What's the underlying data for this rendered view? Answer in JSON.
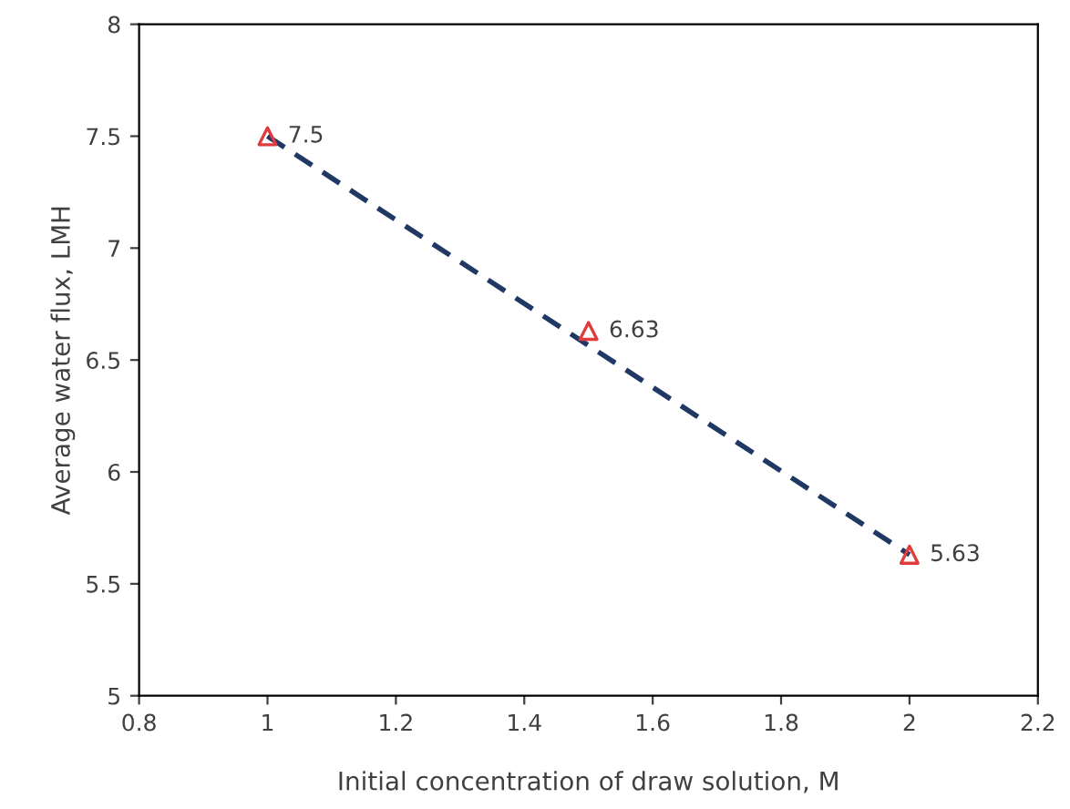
{
  "chart_data": {
    "type": "scatter",
    "xlabel": "Initial concentration of draw solution, M",
    "ylabel": "Average water flux, LMH",
    "xlim": [
      0.8,
      2.2
    ],
    "xticks": [
      0.8,
      1,
      1.2,
      1.4,
      1.6,
      1.8,
      2,
      2.2
    ],
    "ylim": [
      5,
      8
    ],
    "yticks": [
      5,
      5.5,
      6,
      6.5,
      7,
      7.5,
      8
    ],
    "grid": false,
    "legend": false,
    "series": [
      {
        "type": "line",
        "color": "#1f3864",
        "x": [
          1,
          2
        ],
        "values": [
          7.5,
          5.63
        ],
        "line_style": "dashed",
        "marker": "none"
      },
      {
        "color": "#e03c3c",
        "x": [
          1,
          1.5,
          2
        ],
        "values": [
          7.5,
          6.63,
          5.63
        ],
        "marker": "triangle",
        "data_labels": true
      }
    ]
  }
}
